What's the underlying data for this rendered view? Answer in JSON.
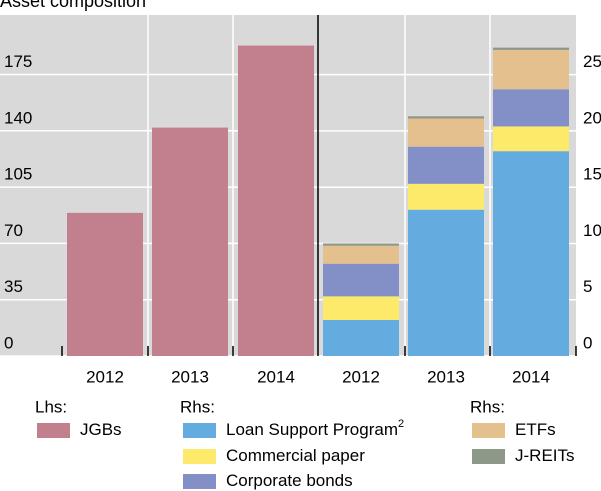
{
  "chart_data": [
    {
      "type": "bar",
      "title": "Asset composition",
      "legend_label": "Lhs:",
      "categories": [
        "2012",
        "2013",
        "2014"
      ],
      "series": [
        {
          "name": "JGBs",
          "color": "#c27f8e",
          "values": [
            89,
            142,
            193
          ]
        }
      ],
      "ylim": [
        0,
        212
      ],
      "yticks": [
        0,
        35,
        70,
        105,
        140,
        175
      ],
      "grid": true
    },
    {
      "type": "stacked_bar",
      "legend_label": "Rhs:",
      "categories": [
        "2012",
        "2013",
        "2014"
      ],
      "series": [
        {
          "name": "Loan Support Program",
          "note": "2",
          "color": "#64abe0",
          "values": [
            3.2,
            13.0,
            18.2
          ]
        },
        {
          "name": "Commercial paper",
          "color": "#fde96a",
          "values": [
            2.1,
            2.3,
            2.2
          ]
        },
        {
          "name": "Corporate bonds",
          "color": "#8390c8",
          "values": [
            2.9,
            3.3,
            3.3
          ]
        },
        {
          "name": "ETFs",
          "color": "#e3c08e",
          "values": [
            1.6,
            2.5,
            3.5
          ]
        },
        {
          "name": "J-REITs",
          "color": "#8e9889",
          "values": [
            0.2,
            0.2,
            0.2
          ]
        }
      ],
      "ylim": [
        0,
        30.3
      ],
      "yticks": [
        0,
        5,
        10,
        15,
        20,
        25
      ],
      "grid": true
    }
  ]
}
